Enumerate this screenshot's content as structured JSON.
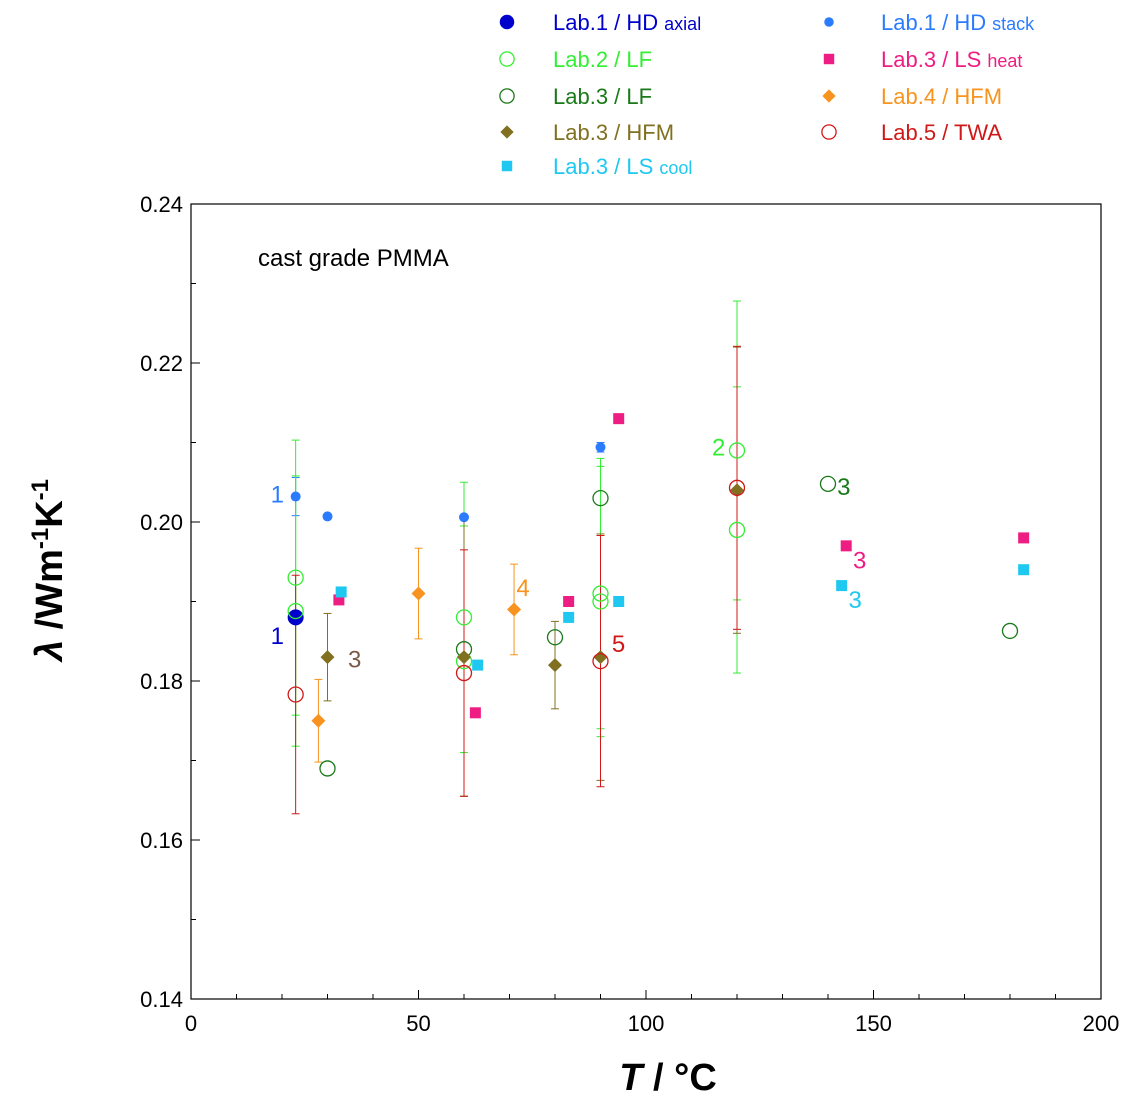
{
  "chart_data": {
    "type": "scatter",
    "title": "cast grade PMMA",
    "xlabel": {
      "var": "T",
      "sep": " / ",
      "unit": "°C"
    },
    "ylabel": {
      "var": "λ",
      "sep": " /",
      "unit_parts": [
        "Wm",
        "-1",
        "K",
        "-1"
      ]
    },
    "xlim": [
      0,
      200
    ],
    "ylim": [
      0.14,
      0.24
    ],
    "xticks": [
      "0",
      "50",
      "100",
      "150",
      "200"
    ],
    "yticks": [
      "0.14",
      "0.16",
      "0.18",
      "0.20",
      "0.22",
      "0.24"
    ],
    "grid": false,
    "legend_position": "top",
    "series": [
      {
        "name": "Lab.1 / HD",
        "sub": "axial",
        "color": "#0000cc",
        "marker": "big-filled-circle",
        "points": [
          {
            "x": 23,
            "y": 0.188,
            "err": 0.0005
          }
        ]
      },
      {
        "name": "Lab.1 / HD",
        "sub": "stack",
        "color": "#2b7bff",
        "marker": "filled-circle",
        "points": [
          {
            "x": 23,
            "y": 0.2032,
            "err": 0.0024
          },
          {
            "x": 30,
            "y": 0.2007,
            "err": 0.0002
          },
          {
            "x": 60,
            "y": 0.2006,
            "err": 0.0002
          },
          {
            "x": 90,
            "y": 0.2094,
            "err": 0.0006
          }
        ]
      },
      {
        "name": "Lab.2 / LF",
        "sub": "",
        "color": "#33ee33",
        "marker": "open-circle",
        "points": [
          {
            "x": 23,
            "y": 0.193,
            "err": 0.0173
          },
          {
            "x": 23,
            "y": 0.1888,
            "err": 0.017
          },
          {
            "x": 60,
            "y": 0.188,
            "err": 0.017
          },
          {
            "x": 60,
            "y": 0.1825,
            "err": 0.017
          },
          {
            "x": 90,
            "y": 0.191,
            "err": 0.017
          },
          {
            "x": 90,
            "y": 0.19,
            "err": 0.017
          },
          {
            "x": 120,
            "y": 0.209,
            "err": 0.0188
          },
          {
            "x": 120,
            "y": 0.199,
            "err": 0.018
          }
        ]
      },
      {
        "name": "Lab.3 / LS",
        "sub": "heat",
        "color": "#ee1d83",
        "marker": "filled-square",
        "points": [
          {
            "x": 32.5,
            "y": 0.1902
          },
          {
            "x": 62.5,
            "y": 0.176
          },
          {
            "x": 83,
            "y": 0.19
          },
          {
            "x": 94,
            "y": 0.213
          },
          {
            "x": 144,
            "y": 0.197
          },
          {
            "x": 183,
            "y": 0.198
          }
        ]
      },
      {
        "name": "Lab.3 / LF",
        "sub": "",
        "color": "#1a7a1a",
        "marker": "open-circle",
        "points": [
          {
            "x": 30,
            "y": 0.169
          },
          {
            "x": 60,
            "y": 0.184
          },
          {
            "x": 80,
            "y": 0.1855
          },
          {
            "x": 90,
            "y": 0.203
          },
          {
            "x": 140,
            "y": 0.2048
          },
          {
            "x": 180,
            "y": 0.1863
          }
        ]
      },
      {
        "name": "Lab.4 / HFM",
        "sub": "",
        "color": "#f7931e",
        "marker": "filled-diamond",
        "points": [
          {
            "x": 28,
            "y": 0.175,
            "err": 0.0052
          },
          {
            "x": 50,
            "y": 0.191,
            "err": 0.0057
          },
          {
            "x": 71,
            "y": 0.189,
            "err": 0.0057
          }
        ]
      },
      {
        "name": "Lab.3 / HFM",
        "sub": "",
        "color": "#807020",
        "marker": "filled-diamond",
        "points": [
          {
            "x": 30,
            "y": 0.183,
            "err": 0.0055
          },
          {
            "x": 60,
            "y": 0.183,
            "err": 0.0175
          },
          {
            "x": 80,
            "y": 0.182,
            "err": 0.0055
          },
          {
            "x": 90,
            "y": 0.183,
            "err": 0.0155
          },
          {
            "x": 120,
            "y": 0.204,
            "err": 0.018
          }
        ]
      },
      {
        "name": "Lab.5 / TWA",
        "sub": "",
        "color": "#d01818",
        "marker": "open-circle",
        "points": [
          {
            "x": 23,
            "y": 0.1783,
            "err": 0.015
          },
          {
            "x": 60,
            "y": 0.181,
            "err": 0.0155
          },
          {
            "x": 90,
            "y": 0.1825,
            "err": 0.0158
          },
          {
            "x": 120,
            "y": 0.2043,
            "err": 0.0178
          }
        ]
      },
      {
        "name": "Lab.3 / LS",
        "sub": "cool",
        "color": "#1ec8f0",
        "marker": "filled-square",
        "points": [
          {
            "x": 33,
            "y": 0.1912
          },
          {
            "x": 63,
            "y": 0.182
          },
          {
            "x": 83,
            "y": 0.188
          },
          {
            "x": 94,
            "y": 0.19
          },
          {
            "x": 143,
            "y": 0.192
          },
          {
            "x": 183,
            "y": 0.194
          }
        ]
      }
    ],
    "legend_order": [
      0,
      1,
      2,
      3,
      4,
      5,
      6,
      7,
      8
    ],
    "annotations": [
      {
        "text": "1",
        "x": 17.5,
        "y": 0.2036,
        "color": "#2b7bff"
      },
      {
        "text": "1",
        "x": 17.5,
        "y": 0.1858,
        "color": "#0000cc"
      },
      {
        "text": "3",
        "x": 34.5,
        "y": 0.1828,
        "color": "#7a5a48"
      },
      {
        "text": "4",
        "x": 71.5,
        "y": 0.1918,
        "color": "#f7931e"
      },
      {
        "text": "5",
        "x": 92.5,
        "y": 0.1848,
        "color": "#d01818"
      },
      {
        "text": "2",
        "x": 114.5,
        "y": 0.2095,
        "color": "#33ee33"
      },
      {
        "text": "3",
        "x": 142,
        "y": 0.2045,
        "color": "#1a7a1a"
      },
      {
        "text": "3",
        "x": 145.5,
        "y": 0.1953,
        "color": "#ee1d83"
      },
      {
        "text": "3",
        "x": 144.5,
        "y": 0.1903,
        "color": "#1ec8f0"
      }
    ]
  }
}
